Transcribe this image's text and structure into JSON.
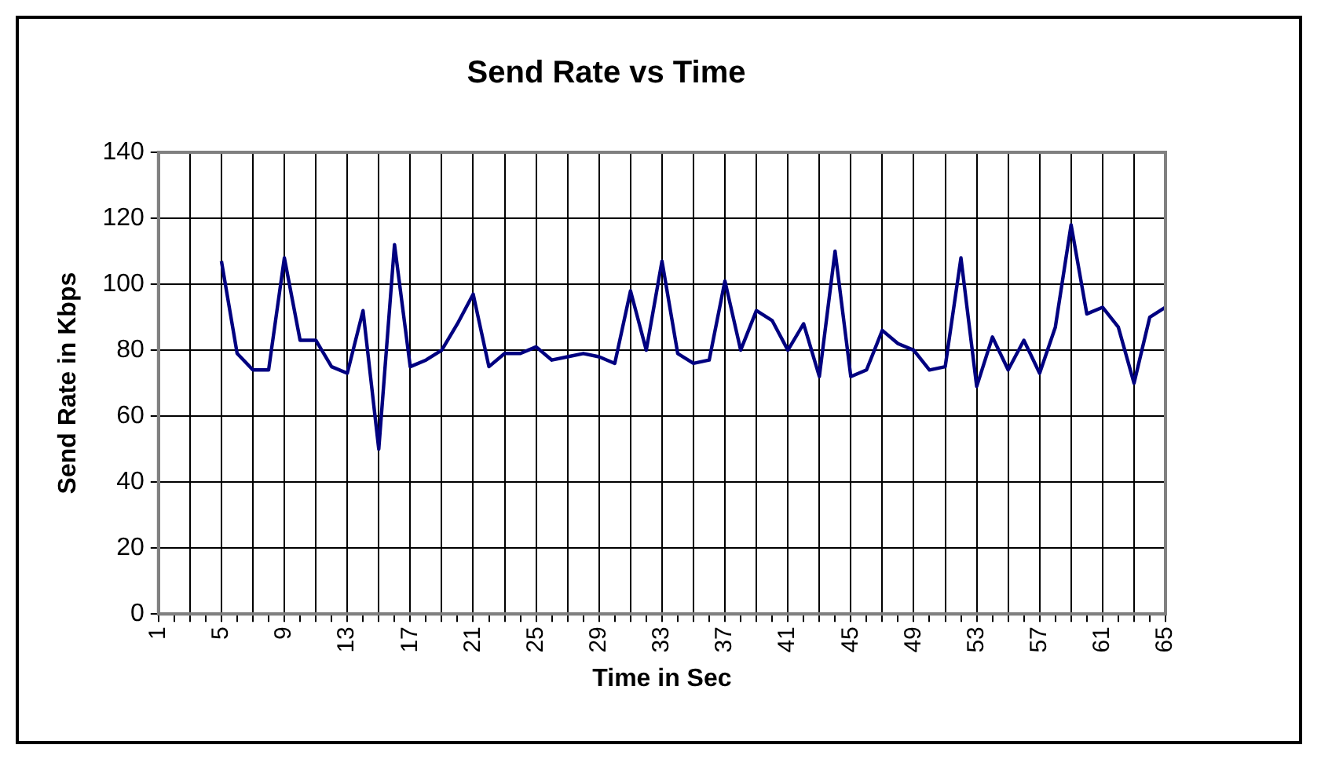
{
  "chart_data": {
    "type": "line",
    "title": "Send Rate vs Time",
    "xlabel": "Time in Sec",
    "ylabel": "Send Rate in Kbps",
    "categories": [
      "1",
      null,
      null,
      null,
      "5",
      null,
      null,
      null,
      "9",
      null,
      null,
      null,
      "13",
      null,
      null,
      null,
      "17",
      null,
      null,
      null,
      "21",
      null,
      null,
      null,
      "25",
      null,
      null,
      null,
      "29",
      null,
      null,
      null,
      "33",
      null,
      null,
      null,
      "37",
      null,
      null,
      null,
      "41",
      null,
      null,
      null,
      "45",
      null,
      null,
      null,
      "49",
      null,
      null,
      null,
      "53",
      null,
      null,
      null,
      "57",
      null,
      null,
      null,
      "61",
      null,
      null,
      null,
      "65"
    ],
    "series": [
      {
        "color": "#000080",
        "values": [
          null,
          null,
          null,
          null,
          107,
          79,
          74,
          74,
          108,
          83,
          83,
          75,
          73,
          92,
          50,
          112,
          75,
          77,
          80,
          88,
          97,
          75,
          79,
          79,
          81,
          77,
          78,
          79,
          78,
          76,
          98,
          80,
          107,
          79,
          76,
          77,
          101,
          80,
          92,
          89,
          80,
          88,
          72,
          110,
          72,
          74,
          86,
          82,
          80,
          74,
          75,
          108,
          69,
          84,
          74,
          83,
          73,
          87,
          118,
          91,
          93,
          87,
          70,
          90,
          93
        ]
      }
    ],
    "ylim": [
      0,
      140
    ],
    "yticks": [
      0,
      20,
      40,
      60,
      80,
      100,
      120,
      140
    ],
    "grid": true,
    "legend": false,
    "marker": "none",
    "line_style": "solid"
  }
}
